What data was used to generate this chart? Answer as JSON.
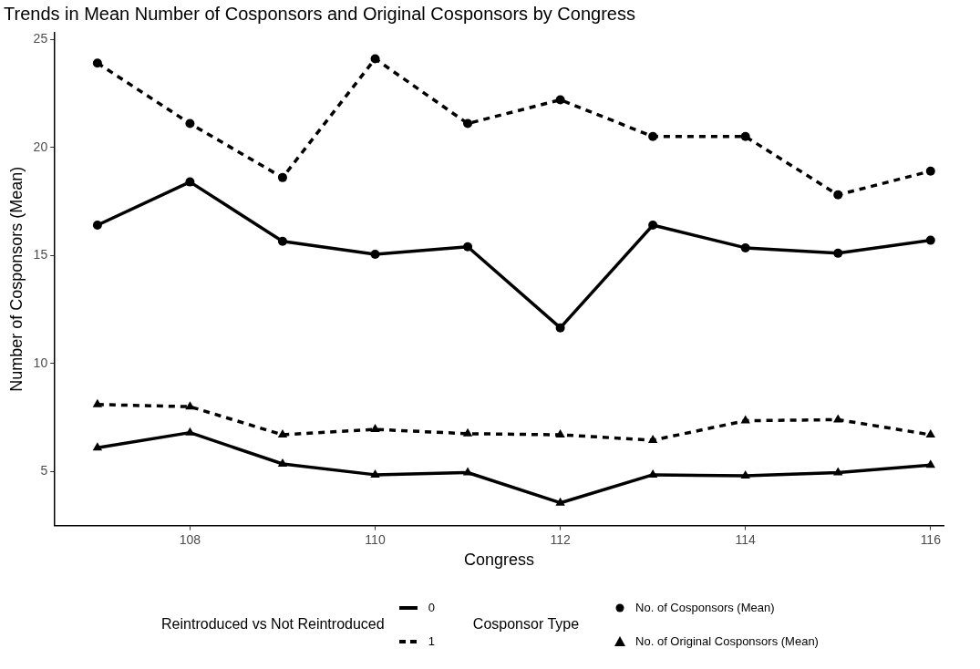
{
  "chart_data": {
    "type": "line",
    "title": "Trends in Mean Number of Cosponsors and Original Cosponsors by Congress",
    "xlabel": "Congress",
    "ylabel": "Number of Cosponsors (Mean)",
    "legend_title": "Reintroduced vs Not Reintroduced",
    "annotations": [
      "Cosponsor Type",
      "No. of Cosponsors (Mean)",
      "No. of Original Cosponsors (Mean)"
    ],
    "x": [
      107,
      108,
      109,
      110,
      111,
      112,
      113,
      114,
      115,
      116
    ],
    "series": [
      {
        "name": "0",
        "color": "#000000",
        "line_style": "solid",
        "marker": "circle",
        "values": [
          16.4,
          18.4,
          15.65,
          15.05,
          15.4,
          11.65,
          16.4,
          15.35,
          15.1,
          15.7
        ]
      },
      {
        "name": "1",
        "color": "#000000",
        "line_style": "dashed",
        "marker": "circle",
        "values": [
          23.9,
          21.1,
          18.6,
          24.1,
          21.1,
          22.2,
          20.5,
          20.5,
          17.8,
          18.9
        ]
      },
      {
        "color": "#000000",
        "line_style": "solid",
        "marker": "triangle",
        "values": [
          6.1,
          6.8,
          5.35,
          4.85,
          4.95,
          3.55,
          4.85,
          4.8,
          4.95,
          5.3
        ]
      },
      {
        "color": "#000000",
        "line_style": "dashed",
        "marker": "triangle",
        "values": [
          8.1,
          8.0,
          6.7,
          6.95,
          6.75,
          6.7,
          6.45,
          7.35,
          7.4,
          6.7
        ]
      }
    ],
    "xlim": [
      106.54,
      116.14
    ],
    "xticks": [
      108,
      110,
      112,
      114,
      116
    ],
    "ylim": [
      2.5,
      25.3
    ],
    "yticks": [
      5,
      10,
      15,
      20,
      25
    ],
    "grid": false,
    "legend": "bottom"
  }
}
